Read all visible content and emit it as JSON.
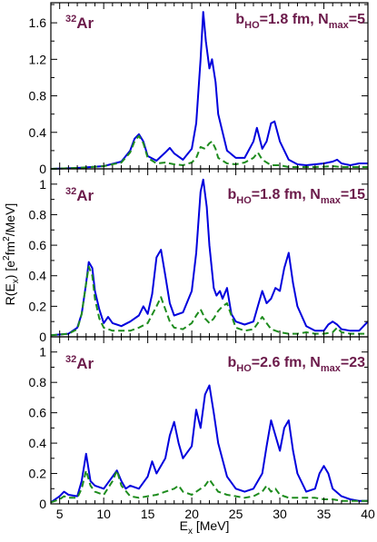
{
  "figure": {
    "xlabel": "E",
    "xlabel_sub": "x",
    "xlabel_unit": " [MeV]",
    "ylabel": "R(E",
    "ylabel_sub": "x",
    "ylabel_unit_a": ") [e",
    "ylabel_sup_a": "2",
    "ylabel_unit_b": "fm",
    "ylabel_sup_b": "2",
    "ylabel_unit_c": "/MeV]"
  },
  "colors": {
    "solid": "#0000dd",
    "dashed": "#1e8c1e",
    "annotation": "#6b1a4a"
  },
  "chart_data": [
    {
      "type": "line",
      "xlim": [
        4,
        40
      ],
      "ylim": [
        0,
        1.82
      ],
      "grid": false,
      "xticks": [
        5,
        10,
        15,
        20,
        25,
        30,
        35,
        40
      ],
      "yticks": [
        0,
        0.4,
        0.8,
        1.2,
        1.6
      ],
      "ytick_labels": [
        "0",
        "0.4",
        "0.8",
        "1.2",
        "1.6"
      ],
      "nucleus_mass": "32",
      "nucleus_symbol": "Ar",
      "param_b": "b",
      "param_b_sub": "HO",
      "param_b_value": "=1.8 fm,  ",
      "param_n": "N",
      "param_n_sub": "max",
      "param_n_value": "=5",
      "series": [
        {
          "style": "solid",
          "x": [
            4,
            7,
            10,
            12,
            13,
            13.5,
            14,
            14.5,
            15,
            16,
            17,
            17.5,
            18,
            19,
            20,
            20.5,
            21,
            21.3,
            21.6,
            22,
            22.3,
            22.7,
            23,
            24,
            25,
            26,
            27,
            27.4,
            28,
            28.5,
            29,
            29.4,
            30,
            31,
            32,
            33,
            34,
            35,
            36,
            36.5,
            37,
            38,
            39,
            40
          ],
          "y": [
            0,
            0.01,
            0.03,
            0.08,
            0.2,
            0.33,
            0.38,
            0.3,
            0.14,
            0.09,
            0.18,
            0.23,
            0.17,
            0.1,
            0.22,
            0.5,
            1.2,
            1.72,
            1.4,
            1.1,
            1.2,
            0.95,
            0.6,
            0.2,
            0.12,
            0.12,
            0.3,
            0.45,
            0.22,
            0.3,
            0.5,
            0.52,
            0.3,
            0.1,
            0.05,
            0.04,
            0.05,
            0.06,
            0.08,
            0.1,
            0.06,
            0.04,
            0.06,
            0.06
          ]
        },
        {
          "style": "dashed",
          "x": [
            4,
            7,
            10,
            12,
            13,
            13.5,
            14,
            14.5,
            15,
            16,
            17,
            18,
            19,
            20,
            20.5,
            21,
            21.5,
            22,
            22.3,
            22.7,
            23,
            24,
            25,
            26,
            27,
            27.5,
            28,
            29,
            30,
            31,
            32,
            34,
            36,
            37,
            40
          ],
          "y": [
            0,
            0.01,
            0.03,
            0.07,
            0.18,
            0.3,
            0.36,
            0.28,
            0.12,
            0.06,
            0.07,
            0.05,
            0.04,
            0.07,
            0.12,
            0.24,
            0.22,
            0.28,
            0.3,
            0.22,
            0.12,
            0.06,
            0.05,
            0.07,
            0.12,
            0.18,
            0.1,
            0.04,
            0.04,
            0.02,
            0.02,
            0.02,
            0.03,
            0.02,
            0.02
          ]
        }
      ]
    },
    {
      "type": "line",
      "xlim": [
        4,
        40
      ],
      "ylim": [
        0,
        1.1
      ],
      "grid": false,
      "xticks": [
        5,
        10,
        15,
        20,
        25,
        30,
        35,
        40
      ],
      "yticks": [
        0,
        0.2,
        0.4,
        0.6,
        0.8,
        1
      ],
      "ytick_labels": [
        "0",
        "0.2",
        "0.4",
        "0.6",
        "0.8",
        "1"
      ],
      "nucleus_mass": "32",
      "nucleus_symbol": "Ar",
      "param_b": "b",
      "param_b_sub": "HO",
      "param_b_value": "=1.8 fm,  ",
      "param_n": "N",
      "param_n_sub": "max",
      "param_n_value": "=15",
      "series": [
        {
          "style": "solid",
          "x": [
            4,
            6,
            7,
            7.5,
            8,
            8.3,
            8.7,
            9,
            9.5,
            10,
            10.5,
            11,
            12,
            13,
            14,
            14.5,
            15,
            15.5,
            16,
            16.5,
            17,
            17.5,
            18,
            19,
            20,
            20.5,
            21,
            21.3,
            21.7,
            22,
            22.5,
            22.8,
            23.2,
            23.5,
            24,
            24.5,
            25,
            26,
            27,
            27.5,
            28,
            28.5,
            29,
            29.5,
            30,
            30.5,
            31,
            31.5,
            32,
            33,
            34,
            35,
            35.5,
            36,
            36.5,
            37,
            38,
            39,
            40
          ],
          "y": [
            0.01,
            0.02,
            0.06,
            0.15,
            0.35,
            0.49,
            0.45,
            0.3,
            0.18,
            0.09,
            0.13,
            0.09,
            0.07,
            0.1,
            0.14,
            0.2,
            0.15,
            0.28,
            0.52,
            0.57,
            0.4,
            0.22,
            0.14,
            0.16,
            0.3,
            0.55,
            0.95,
            1.03,
            0.85,
            0.6,
            0.32,
            0.27,
            0.3,
            0.25,
            0.32,
            0.15,
            0.1,
            0.08,
            0.1,
            0.2,
            0.3,
            0.22,
            0.25,
            0.32,
            0.3,
            0.45,
            0.55,
            0.35,
            0.2,
            0.07,
            0.04,
            0.04,
            0.08,
            0.1,
            0.08,
            0.05,
            0.04,
            0.04,
            0.1
          ]
        },
        {
          "style": "dashed",
          "x": [
            4,
            6,
            7,
            7.5,
            8,
            8.3,
            8.7,
            9,
            9.5,
            10,
            11,
            12,
            13,
            14,
            15,
            16,
            16.5,
            17,
            17.5,
            18,
            19,
            20,
            20.5,
            21,
            21.5,
            22,
            22.5,
            23,
            23.5,
            24,
            24.5,
            25,
            26,
            27,
            27.5,
            28,
            28.5,
            29,
            30,
            31,
            32,
            33,
            34,
            35,
            36,
            36.5,
            37,
            38,
            40
          ],
          "y": [
            0.01,
            0.02,
            0.05,
            0.15,
            0.35,
            0.46,
            0.4,
            0.25,
            0.12,
            0.06,
            0.04,
            0.04,
            0.04,
            0.06,
            0.09,
            0.2,
            0.26,
            0.18,
            0.1,
            0.06,
            0.05,
            0.09,
            0.14,
            0.18,
            0.12,
            0.09,
            0.12,
            0.17,
            0.2,
            0.22,
            0.14,
            0.06,
            0.04,
            0.05,
            0.09,
            0.13,
            0.09,
            0.05,
            0.03,
            0.02,
            0.02,
            0.03,
            0.02,
            0.02,
            0.03,
            0.06,
            0.03,
            0.02,
            0.02
          ]
        }
      ]
    },
    {
      "type": "line",
      "xlim": [
        4,
        40
      ],
      "ylim": [
        0,
        1.1
      ],
      "grid": false,
      "xticks": [
        5,
        10,
        15,
        20,
        25,
        30,
        35,
        40
      ],
      "xtick_labels": [
        "5",
        "10",
        "15",
        "20",
        "25",
        "30",
        "35",
        "40"
      ],
      "yticks": [
        0,
        0.2,
        0.4,
        0.6,
        0.8,
        1
      ],
      "ytick_labels": [
        "0",
        "0.2",
        "0.4",
        "0.6",
        "0.8",
        "1"
      ],
      "nucleus_mass": "32",
      "nucleus_symbol": "Ar",
      "param_b": "b",
      "param_b_sub": "HO",
      "param_b_value": "=2.6 fm,  ",
      "param_n": "N",
      "param_n_sub": "max",
      "param_n_value": "=23",
      "series": [
        {
          "style": "solid",
          "x": [
            4,
            5,
            5.5,
            6,
            7,
            7.5,
            8,
            8.5,
            9,
            10,
            11,
            11.5,
            12,
            12.5,
            13,
            14,
            15,
            15.5,
            16,
            17,
            17.5,
            18,
            18.5,
            19,
            20,
            20.5,
            21,
            21.5,
            22,
            22.5,
            23,
            24,
            25,
            26,
            27,
            28,
            28.5,
            29,
            29.5,
            30,
            30.5,
            31,
            31.5,
            32,
            33,
            34,
            34.5,
            35,
            35.5,
            36,
            37,
            38,
            39,
            40
          ],
          "y": [
            0.01,
            0.05,
            0.08,
            0.06,
            0.05,
            0.15,
            0.33,
            0.15,
            0.12,
            0.1,
            0.18,
            0.22,
            0.15,
            0.1,
            0.12,
            0.1,
            0.18,
            0.28,
            0.2,
            0.3,
            0.45,
            0.54,
            0.4,
            0.3,
            0.38,
            0.62,
            0.5,
            0.72,
            0.78,
            0.6,
            0.4,
            0.18,
            0.1,
            0.08,
            0.1,
            0.2,
            0.38,
            0.55,
            0.45,
            0.35,
            0.5,
            0.55,
            0.35,
            0.2,
            0.08,
            0.1,
            0.2,
            0.25,
            0.2,
            0.1,
            0.05,
            0.03,
            0.02,
            0.02
          ]
        },
        {
          "style": "dashed",
          "x": [
            4,
            5,
            5.5,
            6,
            7,
            7.5,
            8,
            8.5,
            9,
            10,
            11,
            11.5,
            12,
            13,
            14,
            15,
            16,
            17,
            18,
            18.5,
            19,
            20,
            21,
            21.5,
            22,
            22.5,
            23,
            24,
            25,
            26,
            27,
            28,
            28.5,
            29,
            29.5,
            30,
            31,
            32,
            33,
            34,
            35,
            36,
            37,
            40
          ],
          "y": [
            0.01,
            0.03,
            0.05,
            0.04,
            0.04,
            0.1,
            0.22,
            0.12,
            0.08,
            0.06,
            0.15,
            0.22,
            0.12,
            0.05,
            0.04,
            0.05,
            0.06,
            0.08,
            0.1,
            0.12,
            0.08,
            0.06,
            0.1,
            0.12,
            0.16,
            0.12,
            0.08,
            0.06,
            0.05,
            0.04,
            0.05,
            0.08,
            0.12,
            0.08,
            0.1,
            0.06,
            0.04,
            0.04,
            0.04,
            0.04,
            0.03,
            0.03,
            0.02,
            0.02
          ]
        }
      ]
    }
  ]
}
